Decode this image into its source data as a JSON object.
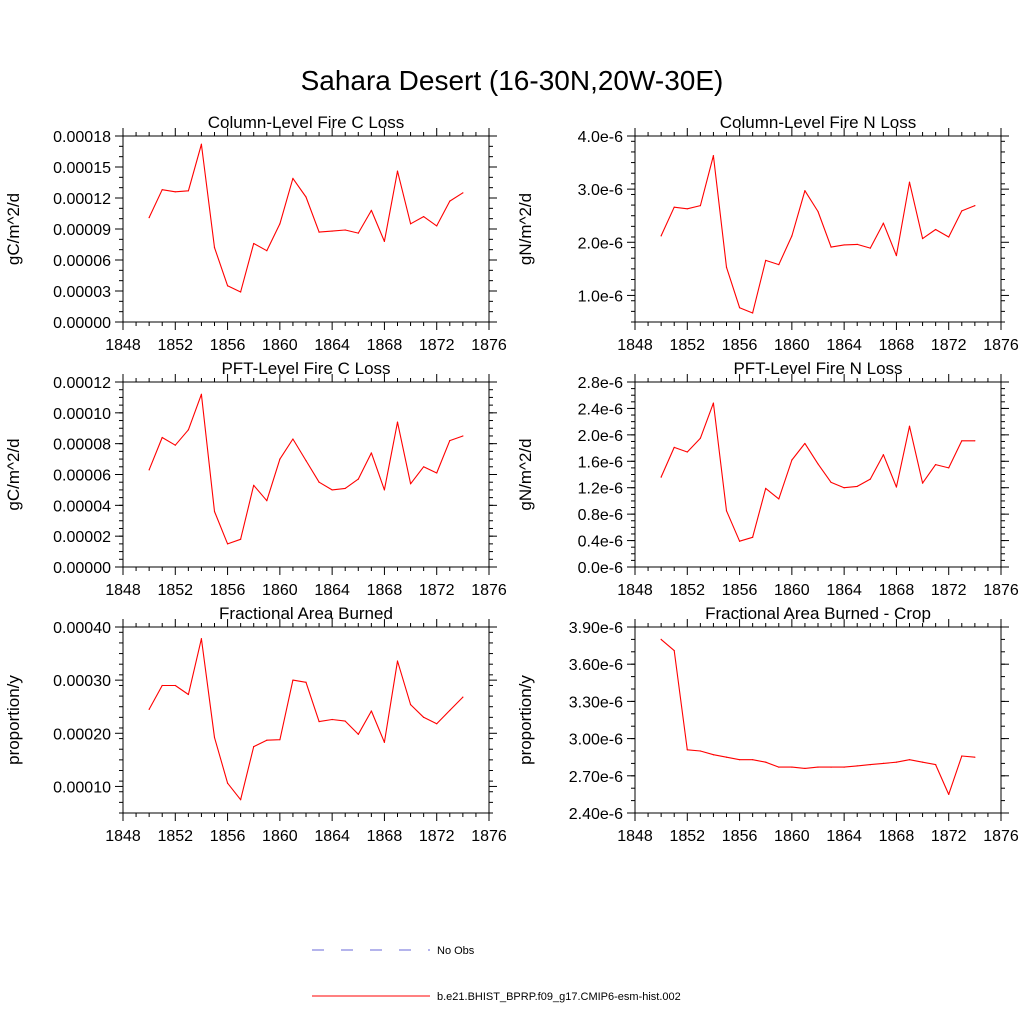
{
  "figure": {
    "title": "Sahara Desert (16-30N,20W-30E)"
  },
  "chart_data": [
    {
      "type": "line",
      "title": "Column-Level Fire C Loss",
      "xlabel": "",
      "ylabel": "gC/m^2/d",
      "xlim": [
        1848,
        1876
      ],
      "ylim": [
        0,
        0.00018
      ],
      "x_ticks": [
        "1848",
        "1852",
        "1856",
        "1860",
        "1864",
        "1868",
        "1872",
        "1876"
      ],
      "y_ticks": [
        {
          "value": 0,
          "label": "0.00000"
        },
        {
          "value": 3e-05,
          "label": "0.00003"
        },
        {
          "value": 6e-05,
          "label": "0.00006"
        },
        {
          "value": 9e-05,
          "label": "0.00009"
        },
        {
          "value": 0.00012,
          "label": "0.00012"
        },
        {
          "value": 0.00015,
          "label": "0.00015"
        },
        {
          "value": 0.00018,
          "label": "0.00018"
        }
      ],
      "y_minor_step": 1e-05,
      "series": [
        {
          "name": "b.e21.BHIST_BPRP.f09_g17.CMIP6-esm-hist.002",
          "color": "#ff0000",
          "x": [
            1850,
            1851,
            1852,
            1853,
            1854,
            1855,
            1856,
            1857,
            1858,
            1859,
            1860,
            1861,
            1862,
            1863,
            1864,
            1865,
            1866,
            1867,
            1868,
            1869,
            1870,
            1871,
            1872,
            1873,
            1874
          ],
          "y": [
            0.000101,
            0.000128,
            0.000126,
            0.000127,
            0.000172,
            7.2e-05,
            3.5e-05,
            2.9e-05,
            7.6e-05,
            6.9e-05,
            9.5e-05,
            0.000139,
            0.000121,
            8.7e-05,
            8.8e-05,
            8.9e-05,
            8.6e-05,
            0.000108,
            7.8e-05,
            0.000146,
            9.5e-05,
            0.000102,
            9.3e-05,
            0.000117,
            0.000125
          ]
        }
      ]
    },
    {
      "type": "line",
      "title": "Column-Level Fire N Loss",
      "xlabel": "",
      "ylabel": "gN/m^2/d",
      "xlim": [
        1848,
        1876
      ],
      "ylim": [
        5e-07,
        4e-06
      ],
      "x_ticks": [
        "1848",
        "1852",
        "1856",
        "1860",
        "1864",
        "1868",
        "1872",
        "1876"
      ],
      "y_ticks": [
        {
          "value": 1e-06,
          "label": "1.0e-6"
        },
        {
          "value": 2e-06,
          "label": "2.0e-6"
        },
        {
          "value": 3e-06,
          "label": "3.0e-6"
        },
        {
          "value": 4e-06,
          "label": "4.0e-6"
        }
      ],
      "y_minor_step": 2e-07,
      "series": [
        {
          "name": "b.e21.BHIST_BPRP.f09_g17.CMIP6-esm-hist.002",
          "color": "#ff0000",
          "x": [
            1850,
            1851,
            1852,
            1853,
            1854,
            1855,
            1856,
            1857,
            1858,
            1859,
            1860,
            1861,
            1862,
            1863,
            1864,
            1865,
            1866,
            1867,
            1868,
            1869,
            1870,
            1871,
            1872,
            1873,
            1874
          ],
          "y": [
            2.12e-06,
            2.66e-06,
            2.63e-06,
            2.69e-06,
            3.63e-06,
            1.53e-06,
            7.7e-07,
            6.7e-07,
            1.66e-06,
            1.58e-06,
            2.12e-06,
            2.97e-06,
            2.58e-06,
            1.91e-06,
            1.95e-06,
            1.96e-06,
            1.89e-06,
            2.36e-06,
            1.75e-06,
            3.13e-06,
            2.07e-06,
            2.24e-06,
            2.1e-06,
            2.59e-06,
            2.69e-06
          ]
        }
      ]
    },
    {
      "type": "line",
      "title": "PFT-Level Fire C Loss",
      "xlabel": "",
      "ylabel": "gC/m^2/d",
      "xlim": [
        1848,
        1876
      ],
      "ylim": [
        0,
        0.00012
      ],
      "x_ticks": [
        "1848",
        "1852",
        "1856",
        "1860",
        "1864",
        "1868",
        "1872",
        "1876"
      ],
      "y_ticks": [
        {
          "value": 0,
          "label": "0.00000"
        },
        {
          "value": 2e-05,
          "label": "0.00002"
        },
        {
          "value": 4e-05,
          "label": "0.00004"
        },
        {
          "value": 6e-05,
          "label": "0.00006"
        },
        {
          "value": 8e-05,
          "label": "0.00008"
        },
        {
          "value": 0.0001,
          "label": "0.00010"
        },
        {
          "value": 0.00012,
          "label": "0.00012"
        }
      ],
      "y_minor_step": 5e-06,
      "series": [
        {
          "name": "b.e21.BHIST_BPRP.f09_g17.CMIP6-esm-hist.002",
          "color": "#ff0000",
          "x": [
            1850,
            1851,
            1852,
            1853,
            1854,
            1855,
            1856,
            1857,
            1858,
            1859,
            1860,
            1861,
            1862,
            1863,
            1864,
            1865,
            1866,
            1867,
            1868,
            1869,
            1870,
            1871,
            1872,
            1873,
            1874
          ],
          "y": [
            6.3e-05,
            8.4e-05,
            7.9e-05,
            8.9e-05,
            0.000112,
            3.6e-05,
            1.5e-05,
            1.8e-05,
            5.3e-05,
            4.3e-05,
            7e-05,
            8.3e-05,
            6.9e-05,
            5.5e-05,
            5e-05,
            5.1e-05,
            5.7e-05,
            7.4e-05,
            5e-05,
            9.4e-05,
            5.4e-05,
            6.5e-05,
            6.1e-05,
            8.2e-05,
            8.5e-05
          ]
        }
      ]
    },
    {
      "type": "line",
      "title": "PFT-Level Fire N Loss",
      "xlabel": "",
      "ylabel": "gN/m^2/d",
      "xlim": [
        1848,
        1876
      ],
      "ylim": [
        0,
        2.8e-06
      ],
      "x_ticks": [
        "1848",
        "1852",
        "1856",
        "1860",
        "1864",
        "1868",
        "1872",
        "1876"
      ],
      "y_ticks": [
        {
          "value": 0,
          "label": "0.0e-6"
        },
        {
          "value": 4e-07,
          "label": "0.4e-6"
        },
        {
          "value": 8e-07,
          "label": "0.8e-6"
        },
        {
          "value": 1.2e-06,
          "label": "1.2e-6"
        },
        {
          "value": 1.6e-06,
          "label": "1.6e-6"
        },
        {
          "value": 2e-06,
          "label": "2.0e-6"
        },
        {
          "value": 2.4e-06,
          "label": "2.4e-6"
        },
        {
          "value": 2.8e-06,
          "label": "2.8e-6"
        }
      ],
      "y_minor_step": 1e-07,
      "series": [
        {
          "name": "b.e21.BHIST_BPRP.f09_g17.CMIP6-esm-hist.002",
          "color": "#ff0000",
          "x": [
            1850,
            1851,
            1852,
            1853,
            1854,
            1855,
            1856,
            1857,
            1858,
            1859,
            1860,
            1861,
            1862,
            1863,
            1864,
            1865,
            1866,
            1867,
            1868,
            1869,
            1870,
            1871,
            1872,
            1873,
            1874
          ],
          "y": [
            1.36e-06,
            1.81e-06,
            1.74e-06,
            1.95e-06,
            2.48e-06,
            8.5e-07,
            3.9e-07,
            4.5e-07,
            1.19e-06,
            1.03e-06,
            1.62e-06,
            1.87e-06,
            1.56e-06,
            1.28e-06,
            1.2e-06,
            1.22e-06,
            1.33e-06,
            1.7e-06,
            1.21e-06,
            2.13e-06,
            1.27e-06,
            1.55e-06,
            1.5e-06,
            1.91e-06,
            1.91e-06
          ]
        }
      ]
    },
    {
      "type": "line",
      "title": "Fractional Area Burned",
      "xlabel": "",
      "ylabel": "proportion/y",
      "xlim": [
        1848,
        1876
      ],
      "ylim": [
        5e-05,
        0.0004
      ],
      "x_ticks": [
        "1848",
        "1852",
        "1856",
        "1860",
        "1864",
        "1868",
        "1872",
        "1876"
      ],
      "y_ticks": [
        {
          "value": 0.0001,
          "label": "0.00010"
        },
        {
          "value": 0.0002,
          "label": "0.00020"
        },
        {
          "value": 0.0003,
          "label": "0.00030"
        },
        {
          "value": 0.0004,
          "label": "0.00040"
        }
      ],
      "y_minor_step": 2e-05,
      "series": [
        {
          "name": "b.e21.BHIST_BPRP.f09_g17.CMIP6-esm-hist.002",
          "color": "#ff0000",
          "x": [
            1850,
            1851,
            1852,
            1853,
            1854,
            1855,
            1856,
            1857,
            1858,
            1859,
            1860,
            1861,
            1862,
            1863,
            1864,
            1865,
            1866,
            1867,
            1868,
            1869,
            1870,
            1871,
            1872,
            1873,
            1874
          ],
          "y": [
            0.000245,
            0.00029,
            0.00029,
            0.000273,
            0.000378,
            0.000192,
            0.000106,
            7.5e-05,
            0.000175,
            0.000187,
            0.000188,
            0.0003,
            0.000296,
            0.000222,
            0.000226,
            0.000223,
            0.000198,
            0.000242,
            0.000183,
            0.000336,
            0.000254,
            0.00023,
            0.000218,
            0.000243,
            0.000268
          ]
        }
      ]
    },
    {
      "type": "line",
      "title": "Fractional Area Burned - Crop",
      "xlabel": "",
      "ylabel": "proportion/y",
      "xlim": [
        1848,
        1876
      ],
      "ylim": [
        2.4e-06,
        3.9e-06
      ],
      "x_ticks": [
        "1848",
        "1852",
        "1856",
        "1860",
        "1864",
        "1868",
        "1872",
        "1876"
      ],
      "y_ticks": [
        {
          "value": 2.4e-06,
          "label": "2.40e-6"
        },
        {
          "value": 2.7e-06,
          "label": "2.70e-6"
        },
        {
          "value": 3e-06,
          "label": "3.00e-6"
        },
        {
          "value": 3.3e-06,
          "label": "3.30e-6"
        },
        {
          "value": 3.6e-06,
          "label": "3.60e-6"
        },
        {
          "value": 3.9e-06,
          "label": "3.90e-6"
        }
      ],
      "y_minor_step": 1e-07,
      "series": [
        {
          "name": "b.e21.BHIST_BPRP.f09_g17.CMIP6-esm-hist.002",
          "color": "#ff0000",
          "x": [
            1850,
            1851,
            1852,
            1853,
            1854,
            1855,
            1856,
            1857,
            1858,
            1859,
            1860,
            1861,
            1862,
            1863,
            1864,
            1865,
            1866,
            1867,
            1868,
            1869,
            1870,
            1871,
            1872,
            1873,
            1874
          ],
          "y": [
            3.8e-06,
            3.71e-06,
            2.91e-06,
            2.9e-06,
            2.87e-06,
            2.85e-06,
            2.83e-06,
            2.83e-06,
            2.81e-06,
            2.77e-06,
            2.77e-06,
            2.76e-06,
            2.77e-06,
            2.77e-06,
            2.77e-06,
            2.78e-06,
            2.79e-06,
            2.8e-06,
            2.81e-06,
            2.83e-06,
            2.81e-06,
            2.79e-06,
            2.55e-06,
            2.86e-06,
            2.85e-06
          ]
        }
      ]
    }
  ],
  "legend": {
    "placement": "bottom-center",
    "entries": [
      {
        "label": "No Obs",
        "color": "#6a6ad8",
        "style": "dashed"
      },
      {
        "label": "b.e21.BHIST_BPRP.f09_g17.CMIP6-esm-hist.002",
        "color": "#ff0000",
        "style": "solid"
      }
    ]
  }
}
